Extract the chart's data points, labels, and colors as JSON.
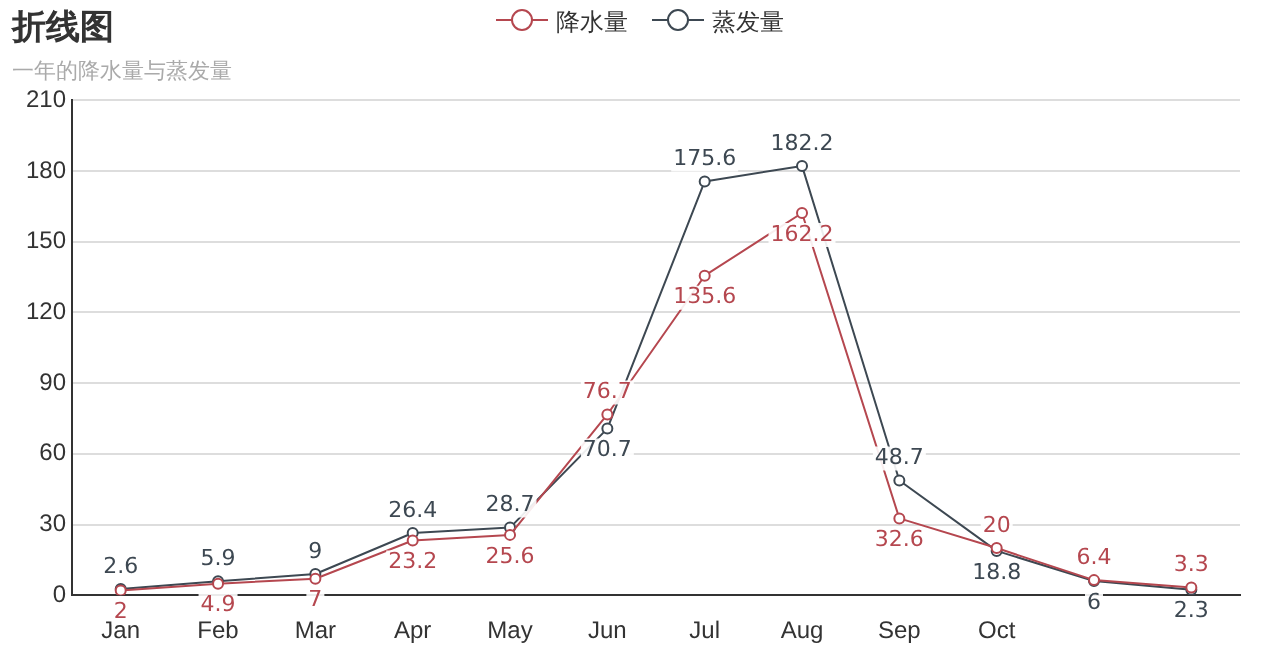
{
  "chart_data": {
    "type": "line",
    "title": "折线图",
    "subtitle": "一年的降水量与蒸发量",
    "categories": [
      "Jan",
      "Feb",
      "Mar",
      "Apr",
      "May",
      "Jun",
      "Jul",
      "Aug",
      "Sep",
      "Oct",
      null,
      null
    ],
    "series": [
      {
        "name": "降水量",
        "color": "#b5474f",
        "values": [
          2.0,
          4.9,
          7.0,
          23.2,
          25.6,
          76.7,
          135.6,
          162.2,
          32.6,
          20.0,
          6.4,
          3.3
        ]
      },
      {
        "name": "蒸发量",
        "color": "#3d4852",
        "values": [
          2.6,
          5.9,
          9.0,
          26.4,
          28.7,
          70.7,
          175.6,
          182.2,
          48.7,
          18.8,
          6.0,
          2.3
        ]
      }
    ],
    "ylim": [
      0,
      210
    ],
    "yticks": [
      0,
      30,
      60,
      90,
      120,
      150,
      180,
      210
    ],
    "grid": "y",
    "legend": "top",
    "marker": "circle",
    "line_style": "solid",
    "data_labels": true
  }
}
